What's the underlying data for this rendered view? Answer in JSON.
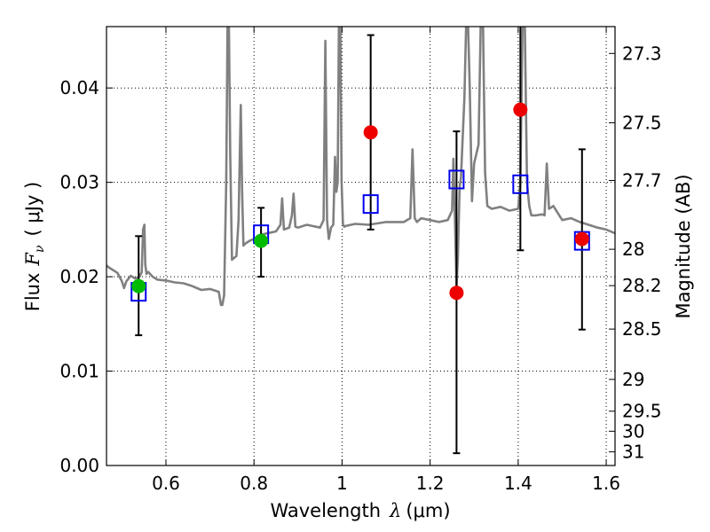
{
  "chart_data": {
    "type": "scatter",
    "xlabel_prefix": "Wavelength",
    "xlabel_symbol": "λ",
    "xlabel_unit": "(μm)",
    "ylabel_prefix": "Flux",
    "ylabel_symbol": "F",
    "ylabel_subscript": "ν",
    "ylabel_unit": "( μJy )",
    "y2label": "Magnitude (AB)",
    "xlim": [
      0.465,
      1.62
    ],
    "ylim": [
      0.0,
      0.0465
    ],
    "grid": true,
    "x_ticks": [
      0.6,
      0.8,
      1.0,
      1.2,
      1.4,
      1.6
    ],
    "x_tick_labels": [
      "0.6",
      "0.8",
      "1",
      "1.2",
      "1.4",
      "1.6"
    ],
    "y_ticks": [
      0.0,
      0.01,
      0.02,
      0.03,
      0.04
    ],
    "y_tick_labels": [
      "0.00",
      "0.01",
      "0.02",
      "0.03",
      "0.04"
    ],
    "mag_ticks": [
      27.3,
      27.5,
      27.7,
      28,
      28.2,
      28.5,
      29,
      29.5,
      30,
      31
    ],
    "mag_tick_labels": [
      "27.3",
      "27.5",
      "27.7",
      "28",
      "28.2",
      "28.5",
      "29",
      "29.5",
      "30",
      "31"
    ],
    "series": [
      {
        "name": "model spectrum",
        "kind": "line",
        "color": "#808080",
        "x": [
          0.465,
          0.47,
          0.48,
          0.49,
          0.5,
          0.505,
          0.51,
          0.52,
          0.53,
          0.54,
          0.545,
          0.548,
          0.551,
          0.553,
          0.556,
          0.56,
          0.57,
          0.58,
          0.6,
          0.62,
          0.64,
          0.66,
          0.68,
          0.7,
          0.72,
          0.725,
          0.728,
          0.732,
          0.737,
          0.74,
          0.743,
          0.746,
          0.75,
          0.76,
          0.765,
          0.77,
          0.773,
          0.776,
          0.78,
          0.79,
          0.8,
          0.82,
          0.85,
          0.86,
          0.864,
          0.868,
          0.88,
          0.886,
          0.89,
          0.894,
          0.9,
          0.92,
          0.95,
          0.958,
          0.962,
          0.966,
          0.97,
          0.975,
          0.98,
          0.984,
          0.987,
          0.99,
          0.993,
          0.996,
          0.999,
          1.002,
          1.005,
          1.01,
          1.03,
          1.06,
          1.1,
          1.14,
          1.155,
          1.16,
          1.165,
          1.17,
          1.175,
          1.18,
          1.2,
          1.22,
          1.24,
          1.25,
          1.253,
          1.256,
          1.26,
          1.263,
          1.267,
          1.27,
          1.278,
          1.282,
          1.286,
          1.29,
          1.295,
          1.3,
          1.31,
          1.315,
          1.32,
          1.325,
          1.33,
          1.34,
          1.36,
          1.38,
          1.4,
          1.405,
          1.41,
          1.415,
          1.42,
          1.425,
          1.43,
          1.44,
          1.455,
          1.46,
          1.465,
          1.47,
          1.48,
          1.5,
          1.52,
          1.54,
          1.56,
          1.58,
          1.6,
          1.62
        ],
        "y": [
          0.0212,
          0.021,
          0.0207,
          0.0204,
          0.0195,
          0.0188,
          0.0195,
          0.0201,
          0.0198,
          0.02,
          0.0205,
          0.025,
          0.0255,
          0.0213,
          0.0203,
          0.0205,
          0.02,
          0.0197,
          0.0196,
          0.0194,
          0.0193,
          0.019,
          0.0186,
          0.0187,
          0.0184,
          0.017,
          0.017,
          0.018,
          0.03,
          0.047,
          0.047,
          0.033,
          0.0218,
          0.0222,
          0.026,
          0.0382,
          0.029,
          0.0233,
          0.0235,
          0.0238,
          0.024,
          0.0245,
          0.0248,
          0.0255,
          0.0283,
          0.025,
          0.0252,
          0.0265,
          0.0288,
          0.0253,
          0.0252,
          0.0255,
          0.0252,
          0.026,
          0.045,
          0.026,
          0.024,
          0.0252,
          0.0255,
          0.0327,
          0.029,
          0.03,
          0.047,
          0.047,
          0.03,
          0.0256,
          0.0253,
          0.0254,
          0.0256,
          0.0255,
          0.0258,
          0.0258,
          0.0262,
          0.0335,
          0.0262,
          0.0258,
          0.026,
          0.0262,
          0.026,
          0.0258,
          0.026,
          0.027,
          0.0325,
          0.027,
          0.019,
          0.022,
          0.0295,
          0.0305,
          0.039,
          0.047,
          0.047,
          0.04,
          0.028,
          0.032,
          0.034,
          0.047,
          0.047,
          0.031,
          0.0275,
          0.0272,
          0.0274,
          0.027,
          0.0272,
          0.03,
          0.047,
          0.047,
          0.03,
          0.0275,
          0.0265,
          0.0265,
          0.0266,
          0.0265,
          0.032,
          0.0272,
          0.0275,
          0.026,
          0.0262,
          0.0258,
          0.0255,
          0.0252,
          0.025,
          0.0246
        ]
      },
      {
        "name": "model photometry",
        "kind": "open-square",
        "color": "#0000ee",
        "x": [
          0.538,
          0.816,
          1.065,
          1.26,
          1.405,
          1.545
        ],
        "y": [
          0.0184,
          0.0245,
          0.0277,
          0.0303,
          0.0298,
          0.0238
        ]
      },
      {
        "name": "detections",
        "kind": "filled-circle",
        "color": "#00bb00",
        "x": [
          0.538,
          0.816
        ],
        "y": [
          0.019,
          0.0238
        ]
      },
      {
        "name": "upper limits",
        "kind": "filled-circle",
        "color": "#ee0000",
        "x": [
          1.065,
          1.26,
          1.405,
          1.545
        ],
        "y": [
          0.0353,
          0.0183,
          0.0377,
          0.024
        ]
      },
      {
        "name": "error bars",
        "kind": "errorbar",
        "color": "#000000",
        "x": [
          0.538,
          0.816,
          1.065,
          1.26,
          1.405,
          1.545
        ],
        "low": [
          0.0138,
          0.02,
          0.025,
          0.0013,
          0.0228,
          0.0144
        ],
        "high": [
          0.0243,
          0.0273,
          0.0456,
          0.0354,
          0.047,
          0.0335
        ]
      }
    ]
  }
}
